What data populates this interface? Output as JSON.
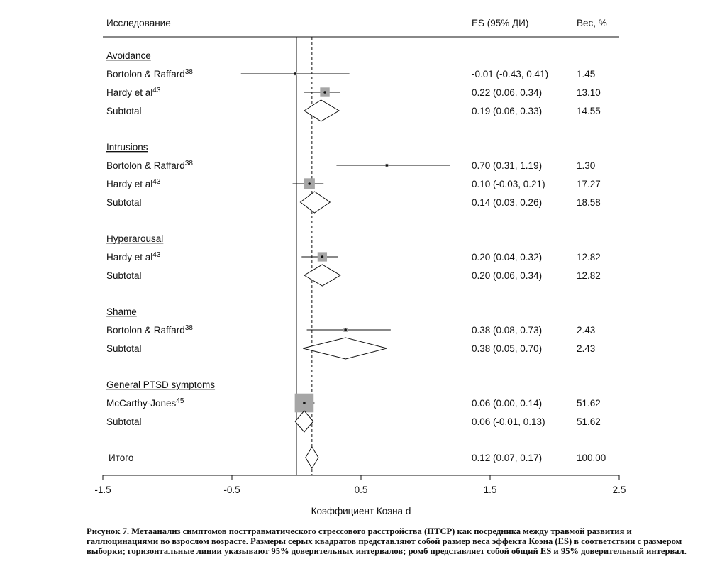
{
  "chart_data": {
    "type": "forest",
    "header": {
      "study": "Исследование",
      "es": "ES (95% ДИ)",
      "weight": "Вес, %"
    },
    "groups": [
      {
        "name": "Avoidance",
        "studies": [
          {
            "label": "Bortolon & Raffard",
            "ref": "38",
            "es": -0.01,
            "ci": [
              -0.43,
              0.41
            ],
            "es_text": "-0.01 (-0.43, 0.41)",
            "weight": 1.45,
            "weight_text": "1.45"
          },
          {
            "label": "Hardy et al",
            "ref": "43",
            "es": 0.22,
            "ci": [
              0.06,
              0.34
            ],
            "es_text": "0.22 (0.06, 0.34)",
            "weight": 13.1,
            "weight_text": "13.10"
          }
        ],
        "subtotal": {
          "label": "Subtotal",
          "es": 0.19,
          "ci": [
            0.06,
            0.33
          ],
          "es_text": "0.19 (0.06, 0.33)",
          "weight_text": "14.55"
        }
      },
      {
        "name": "Intrusions",
        "studies": [
          {
            "label": "Bortolon & Raffard",
            "ref": "38",
            "es": 0.7,
            "ci": [
              0.31,
              1.19
            ],
            "es_text": "0.70 (0.31, 1.19)",
            "weight": 1.3,
            "weight_text": "1.30"
          },
          {
            "label": "Hardy et al",
            "ref": "43",
            "es": 0.1,
            "ci": [
              -0.03,
              0.21
            ],
            "es_text": "0.10 (-0.03, 0.21)",
            "weight": 17.27,
            "weight_text": "17.27"
          }
        ],
        "subtotal": {
          "label": "Subtotal",
          "es": 0.14,
          "ci": [
            0.03,
            0.26
          ],
          "es_text": "0.14 (0.03, 0.26)",
          "weight_text": "18.58"
        }
      },
      {
        "name": "Hyperarousal",
        "studies": [
          {
            "label": "Hardy et al",
            "ref": "43",
            "es": 0.2,
            "ci": [
              0.04,
              0.32
            ],
            "es_text": "0.20 (0.04, 0.32)",
            "weight": 12.82,
            "weight_text": "12.82"
          }
        ],
        "subtotal": {
          "label": "Subtotal",
          "es": 0.2,
          "ci": [
            0.06,
            0.34
          ],
          "es_text": "0.20 (0.06, 0.34)",
          "weight_text": "12.82"
        }
      },
      {
        "name": "Shame",
        "studies": [
          {
            "label": "Bortolon & Raffard",
            "ref": "38",
            "es": 0.38,
            "ci": [
              0.08,
              0.73
            ],
            "es_text": "0.38 (0.08, 0.73)",
            "weight": 2.43,
            "weight_text": "2.43"
          }
        ],
        "subtotal": {
          "label": "Subtotal",
          "es": 0.38,
          "ci": [
            0.05,
            0.7
          ],
          "es_text": "0.38 (0.05, 0.70)",
          "weight_text": "2.43"
        }
      },
      {
        "name": "General PTSD symptoms",
        "studies": [
          {
            "label": "McCarthy-Jones",
            "ref": "45",
            "es": 0.06,
            "ci": [
              0.0,
              0.14
            ],
            "es_text": "0.06 (0.00, 0.14)",
            "weight": 51.62,
            "weight_text": "51.62"
          }
        ],
        "subtotal": {
          "label": "Subtotal",
          "es": 0.06,
          "ci": [
            -0.01,
            0.13
          ],
          "es_text": "0.06 (-0.01, 0.13)",
          "weight_text": "51.62"
        }
      }
    ],
    "overall": {
      "label": "Итого",
      "es": 0.12,
      "ci": [
        0.07,
        0.17
      ],
      "es_text": "0.12 (0.07, 0.17)",
      "weight_text": "100.00"
    },
    "null_line": 0,
    "xlim": [
      -1.5,
      2.5
    ],
    "xticks": [
      -1.5,
      -0.5,
      0.5,
      1.5,
      2.5
    ],
    "xtick_labels": [
      "-1.5",
      "-0.5",
      "0.5",
      "1.5",
      "2.5"
    ],
    "xlabel": "Коэффициент Коэна d"
  },
  "caption": "Рисунок 7. Метаанализ симптомов посттравматического стрессового расстройства (ПТСР) как посредника между травмой развития и галлюцинациями во взрослом возрасте. Размеры серых квадратов представляют собой размер веса эффекта Коэна (ES) в соответствии с размером выборки; горизонтальные линии указывают 95% доверительных интервалов; ромб представляет собой общий ES и 95% доверительный интервал."
}
